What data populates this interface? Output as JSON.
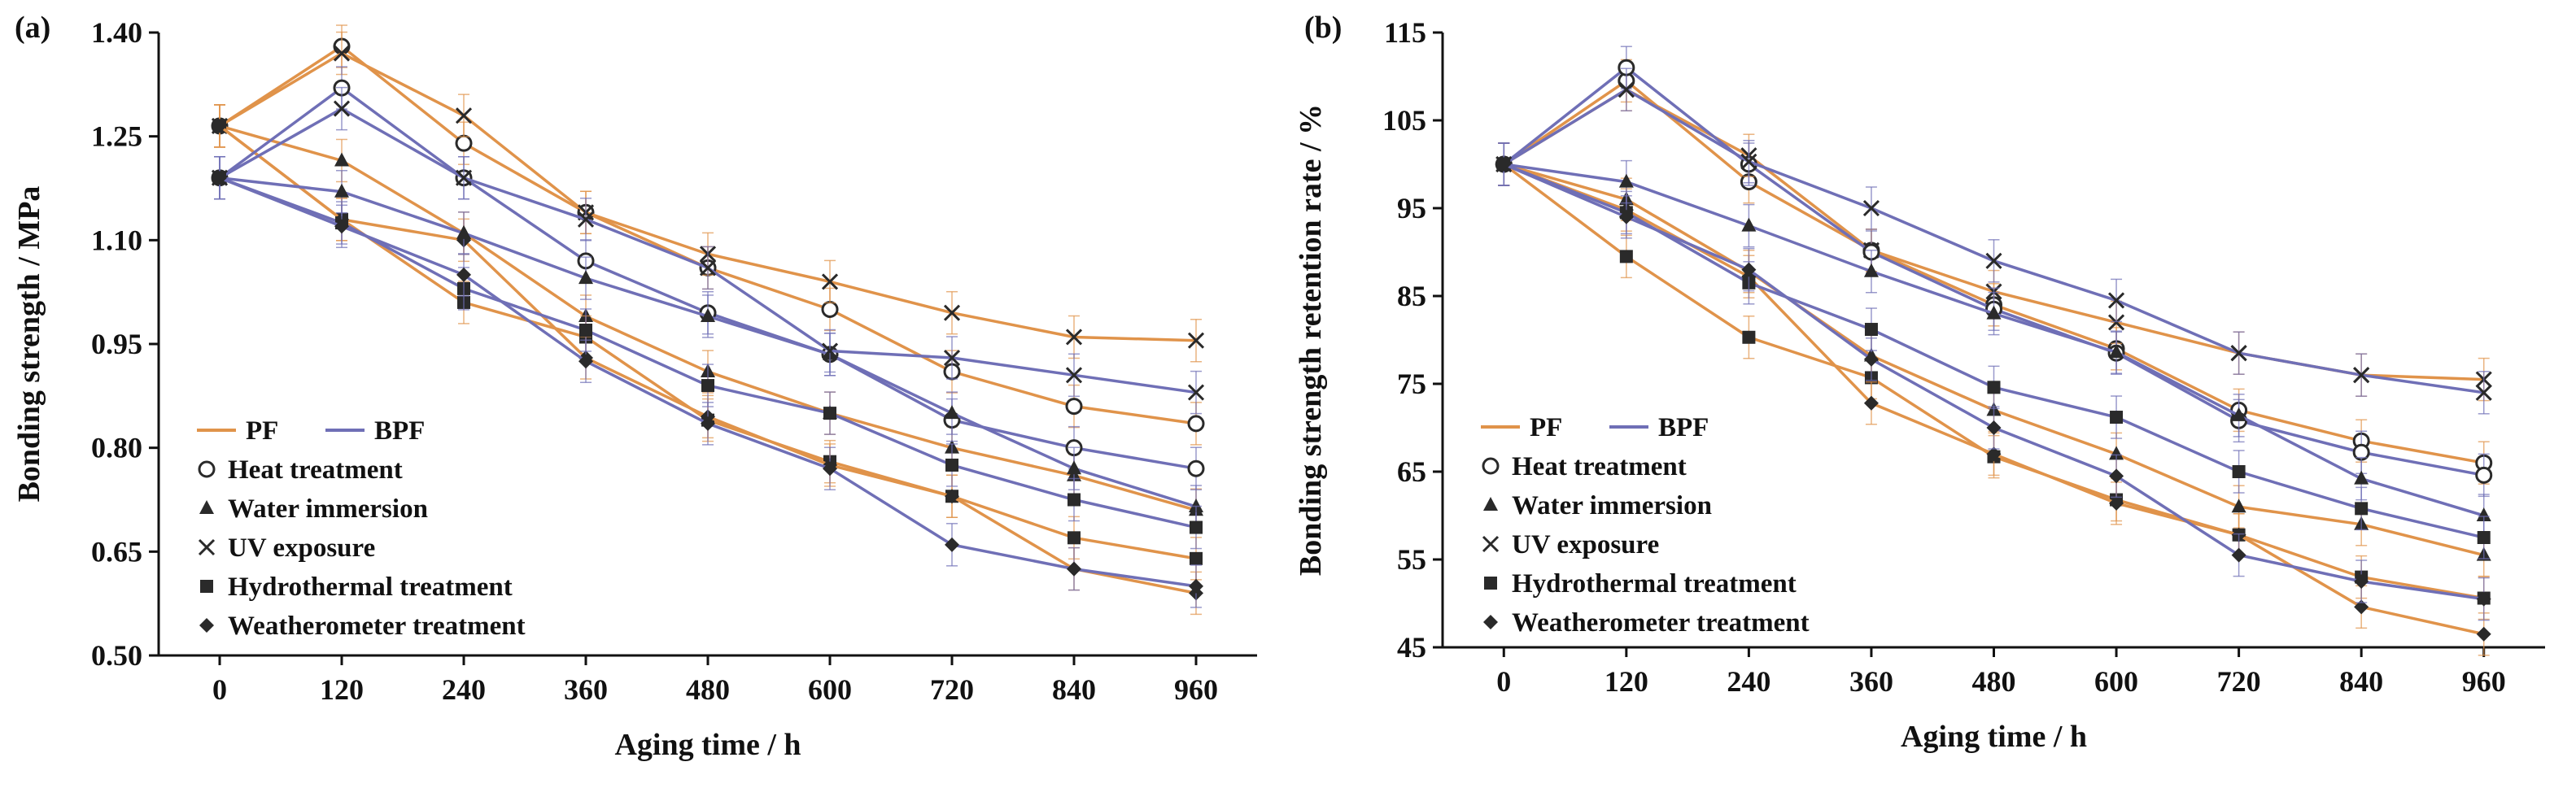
{
  "chart_data": [
    {
      "type": "line",
      "panel_label": "(a)",
      "xlabel": "Aging time / h",
      "ylabel": "Bonding strength / MPa",
      "x": [
        0,
        120,
        240,
        360,
        480,
        600,
        720,
        840,
        960
      ],
      "xlim": [
        0,
        960
      ],
      "ylim": [
        0.5,
        1.4
      ],
      "yticks": [
        "0.50",
        "0.65",
        "0.80",
        "0.95",
        "1.10",
        "1.25",
        "1.40"
      ],
      "legend_placement": "bottom-left",
      "groups": [
        "PF",
        "BPF"
      ],
      "treatments": [
        "Heat treatment",
        "Water immersion",
        "UV exposure",
        "Hydrothermal treatment",
        "Weatherometer treatment"
      ],
      "series": [
        {
          "name": "PF Heat treatment",
          "group": "PF",
          "marker": "circle",
          "values": [
            1.265,
            1.38,
            1.24,
            1.14,
            1.06,
            1.0,
            0.91,
            0.86,
            0.835
          ]
        },
        {
          "name": "PF Water immersion",
          "group": "PF",
          "marker": "triangle",
          "values": [
            1.265,
            1.215,
            1.11,
            0.99,
            0.91,
            0.85,
            0.8,
            0.76,
            0.71
          ]
        },
        {
          "name": "PF UV exposure",
          "group": "PF",
          "marker": "x",
          "values": [
            1.265,
            1.37,
            1.28,
            1.14,
            1.08,
            1.04,
            0.995,
            0.96,
            0.955
          ]
        },
        {
          "name": "PF Hydrothermal treatment",
          "group": "PF",
          "marker": "square",
          "values": [
            1.265,
            1.13,
            1.01,
            0.96,
            0.84,
            0.78,
            0.73,
            0.67,
            0.64
          ]
        },
        {
          "name": "PF Weatherometer treatment",
          "group": "PF",
          "marker": "diamond",
          "values": [
            1.265,
            1.13,
            1.1,
            0.93,
            0.845,
            0.775,
            0.73,
            0.625,
            0.59
          ]
        },
        {
          "name": "BPF Heat treatment",
          "group": "BPF",
          "marker": "circle",
          "values": [
            1.19,
            1.32,
            1.19,
            1.07,
            0.995,
            0.935,
            0.84,
            0.8,
            0.77
          ]
        },
        {
          "name": "BPF Water immersion",
          "group": "BPF",
          "marker": "triangle",
          "values": [
            1.19,
            1.17,
            1.11,
            1.045,
            0.99,
            0.935,
            0.85,
            0.77,
            0.715
          ]
        },
        {
          "name": "BPF UV exposure",
          "group": "BPF",
          "marker": "x",
          "values": [
            1.19,
            1.29,
            1.19,
            1.13,
            1.06,
            0.94,
            0.93,
            0.905,
            0.88
          ]
        },
        {
          "name": "BPF Hydrothermal treatment",
          "group": "BPF",
          "marker": "square",
          "values": [
            1.19,
            1.125,
            1.03,
            0.97,
            0.89,
            0.85,
            0.775,
            0.725,
            0.685
          ]
        },
        {
          "name": "BPF Weatherometer treatment",
          "group": "BPF",
          "marker": "diamond",
          "values": [
            1.19,
            1.12,
            1.05,
            0.925,
            0.835,
            0.77,
            0.66,
            0.625,
            0.6
          ]
        }
      ]
    },
    {
      "type": "line",
      "panel_label": "(b)",
      "xlabel": "Aging time / h",
      "ylabel": "Bonding strength retention rate / %",
      "x": [
        0,
        120,
        240,
        360,
        480,
        600,
        720,
        840,
        960
      ],
      "xlim": [
        0,
        960
      ],
      "ylim": [
        45,
        115
      ],
      "yticks": [
        "45",
        "55",
        "65",
        "75",
        "85",
        "95",
        "105",
        "115"
      ],
      "legend_placement": "bottom-left",
      "groups": [
        "PF",
        "BPF"
      ],
      "treatments": [
        "Heat treatment",
        "Water immersion",
        "UV exposure",
        "Hydrothermal treatment",
        "Weatherometer treatment"
      ],
      "series": [
        {
          "name": "PF Heat treatment",
          "group": "PF",
          "marker": "circle",
          "values": [
            100,
            109.5,
            98,
            90.2,
            84,
            79,
            72,
            68.5,
            66
          ]
        },
        {
          "name": "PF Water immersion",
          "group": "PF",
          "marker": "triangle",
          "values": [
            100,
            96,
            87.8,
            78.2,
            72,
            67,
            61,
            59,
            55.5
          ]
        },
        {
          "name": "PF UV exposure",
          "group": "PF",
          "marker": "x",
          "values": [
            100,
            108.5,
            101,
            90.2,
            85.5,
            82,
            78.5,
            76,
            75.5
          ]
        },
        {
          "name": "PF Hydrothermal treatment",
          "group": "PF",
          "marker": "square",
          "values": [
            100,
            89.5,
            80.3,
            75.7,
            66.7,
            61.8,
            57.8,
            53,
            50.6
          ]
        },
        {
          "name": "PF Weatherometer treatment",
          "group": "PF",
          "marker": "diamond",
          "values": [
            100,
            94.8,
            87.2,
            72.8,
            67,
            61.4,
            57.8,
            49.6,
            46.5
          ]
        },
        {
          "name": "BPF Heat treatment",
          "group": "BPF",
          "marker": "circle",
          "values": [
            100,
            111,
            100,
            90,
            83.5,
            78.5,
            70.8,
            67.2,
            64.6
          ]
        },
        {
          "name": "BPF Water immersion",
          "group": "BPF",
          "marker": "triangle",
          "values": [
            100,
            98,
            93,
            87.8,
            83,
            78.6,
            71.4,
            64.2,
            60
          ]
        },
        {
          "name": "BPF UV exposure",
          "group": "BPF",
          "marker": "x",
          "values": [
            100,
            108.5,
            100.3,
            95,
            89,
            84.5,
            78.5,
            76,
            74
          ]
        },
        {
          "name": "BPF Hydrothermal treatment",
          "group": "BPF",
          "marker": "square",
          "values": [
            100,
            94.5,
            86.5,
            81.2,
            74.6,
            71.2,
            65,
            60.8,
            57.5
          ]
        },
        {
          "name": "BPF Weatherometer treatment",
          "group": "BPF",
          "marker": "diamond",
          "values": [
            100,
            94,
            88,
            77.8,
            70,
            64.5,
            55.5,
            52.5,
            50.5
          ]
        }
      ]
    }
  ],
  "colors": {
    "PF": "#E0934A",
    "BPF": "#6F6FB6",
    "markers": "#2a2a2a",
    "axis": "#111111"
  }
}
